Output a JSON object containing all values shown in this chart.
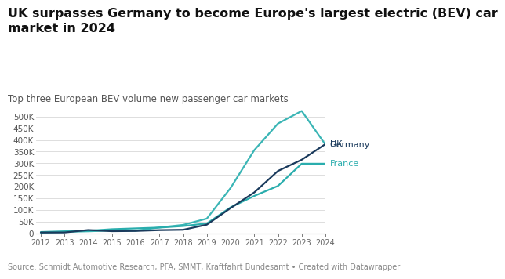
{
  "title": "UK surpasses Germany to become Europe's largest electric (BEV) car\nmarket in 2024",
  "subtitle": "Top three European BEV volume new passenger car markets",
  "source": "Source: Schmidt Automotive Research, PFA, SMMT, Kraftfahrt Bundesamt • Created with Datawrapper",
  "years": [
    2012,
    2013,
    2014,
    2015,
    2016,
    2017,
    2018,
    2019,
    2020,
    2021,
    2022,
    2023,
    2024
  ],
  "uk": [
    3500,
    3600,
    14000,
    9000,
    10000,
    13500,
    15000,
    37000,
    108000,
    175000,
    267000,
    315000,
    382000
  ],
  "germany": [
    2800,
    6000,
    8500,
    12000,
    11000,
    25000,
    36000,
    63000,
    194000,
    356000,
    470000,
    524000,
    380000
  ],
  "france": [
    5500,
    8500,
    10800,
    17500,
    21000,
    24500,
    31000,
    42000,
    111000,
    160000,
    203000,
    298000,
    298000
  ],
  "uk_color": "#1a3a5c",
  "germany_color": "#3ab5b5",
  "france_color": "#2aadad",
  "background_color": "#ffffff",
  "ylim": [
    0,
    550000
  ],
  "yticks": [
    0,
    50000,
    100000,
    150000,
    200000,
    250000,
    300000,
    350000,
    400000,
    450000,
    500000
  ],
  "title_fontsize": 11.5,
  "subtitle_fontsize": 8.5,
  "source_fontsize": 7
}
